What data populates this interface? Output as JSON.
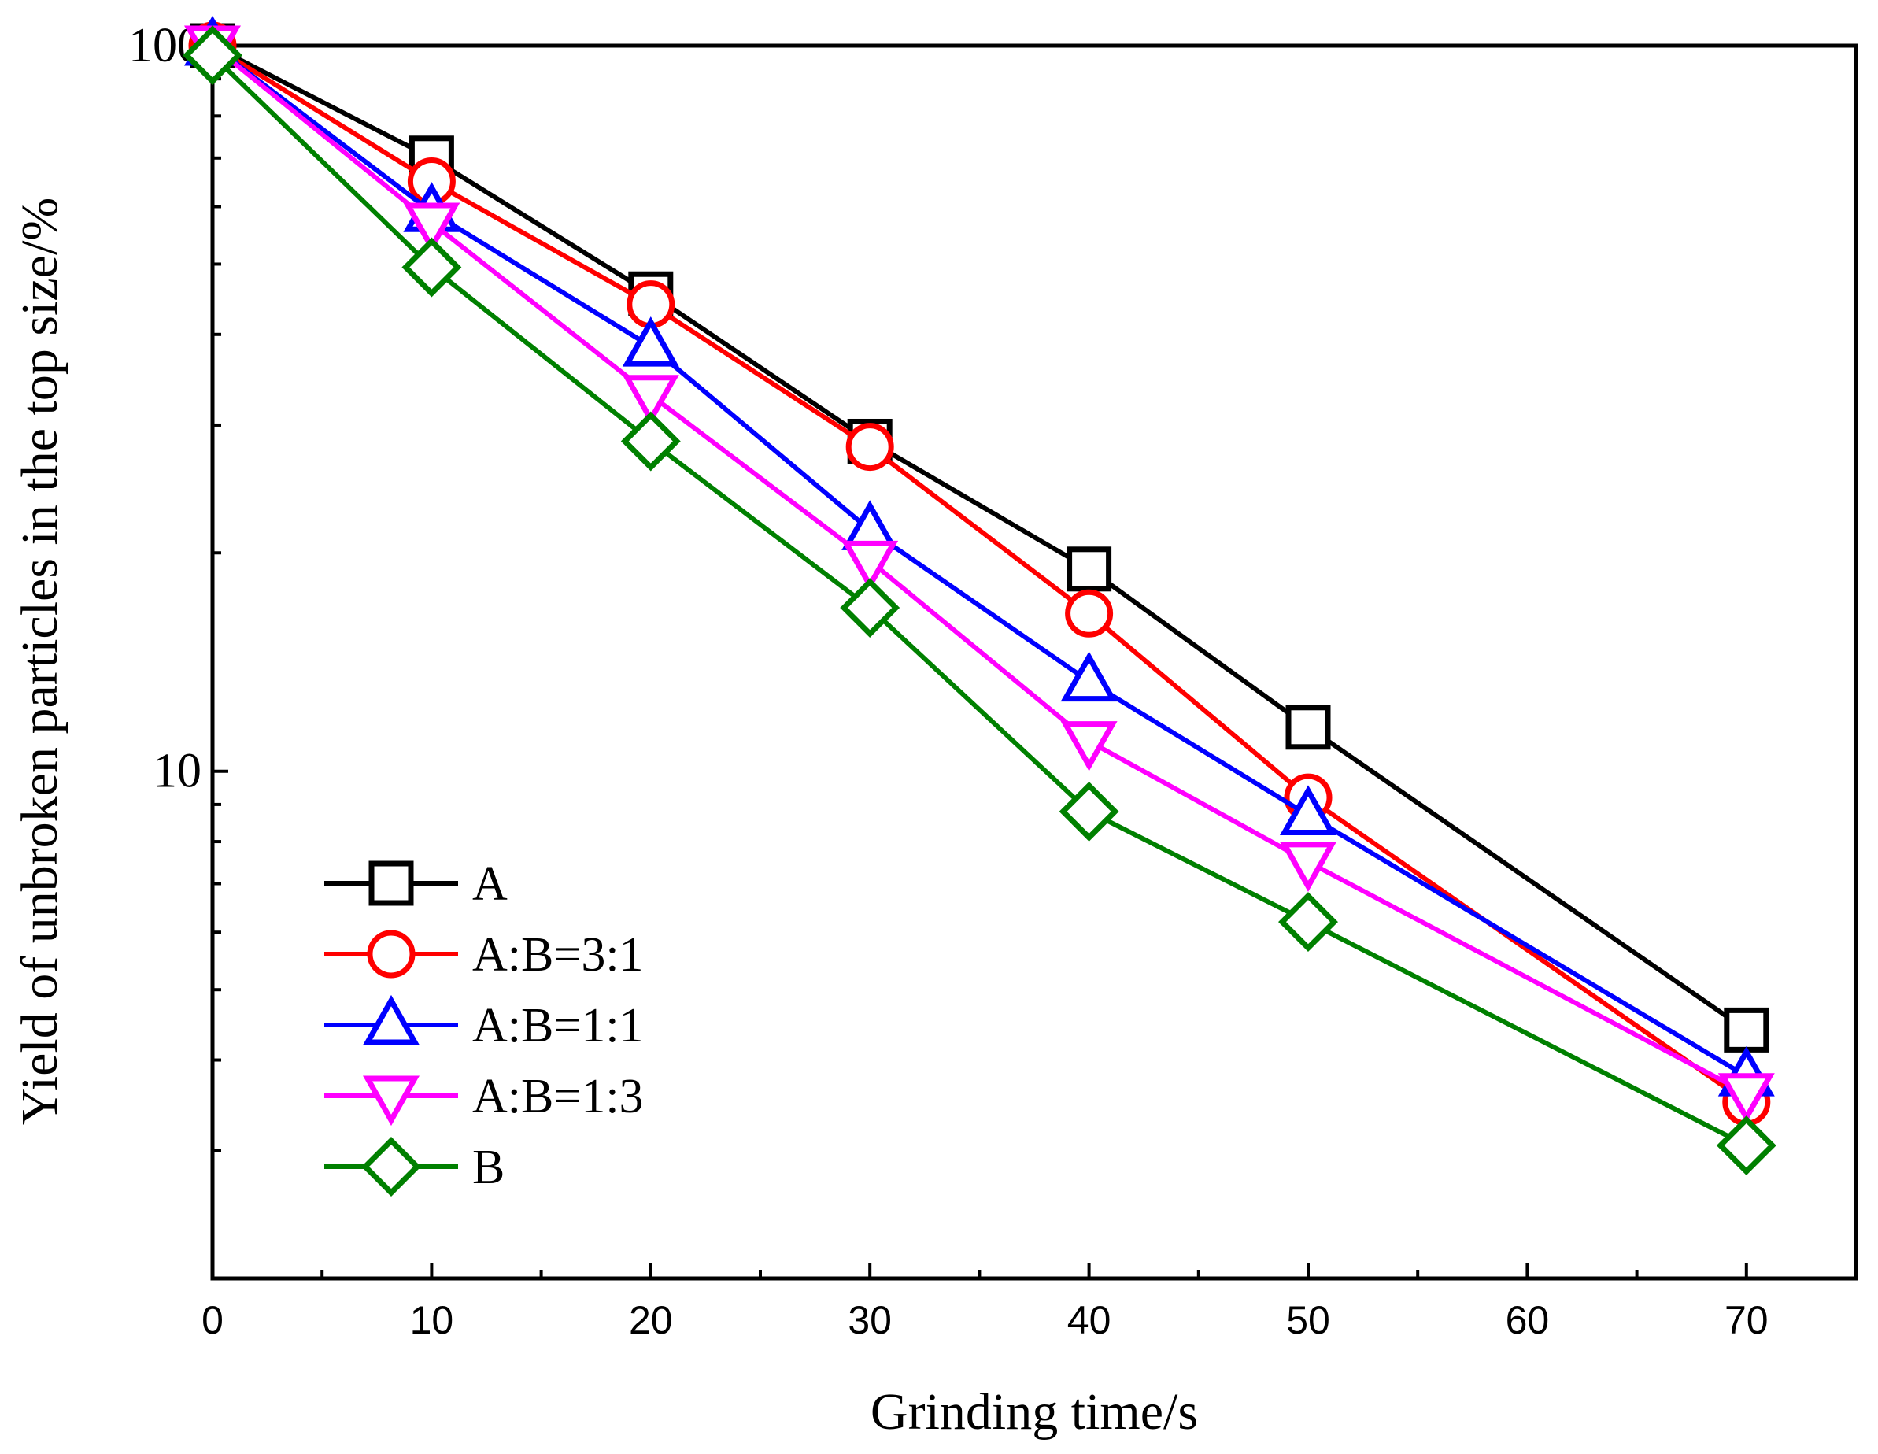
{
  "chart_data": {
    "type": "line",
    "xlabel": "Grinding time/s",
    "ylabel": "Yield of unbroken particles in the top size/%",
    "xlim": [
      0,
      75
    ],
    "ylim": [
      2,
      100
    ],
    "yscale": "log",
    "grid": false,
    "legend_position": "bottom-left",
    "x_ticks": [
      0,
      10,
      20,
      30,
      40,
      50,
      60,
      70
    ],
    "x_tick_labels": [
      "0",
      "10",
      "20",
      "30",
      "40",
      "50",
      "60",
      "70"
    ],
    "y_ticks": [
      10,
      100
    ],
    "y_tick_labels": [
      "10",
      "100"
    ],
    "series": [
      {
        "name": "A",
        "marker": "square",
        "color": "#000000",
        "x": [
          0,
          10,
          20,
          30,
          40,
          50,
          70
        ],
        "y": [
          100,
          70,
          45.5,
          28.5,
          19,
          11.5,
          4.4
        ]
      },
      {
        "name": "A:B=3:1",
        "marker": "circle",
        "color": "#ff0000",
        "x": [
          0,
          10,
          20,
          30,
          40,
          50,
          70
        ],
        "y": [
          100,
          65,
          44,
          28,
          16.5,
          9.2,
          3.5
        ]
      },
      {
        "name": "A:B=1:1",
        "marker": "triangle-up",
        "color": "#0000ff",
        "x": [
          0,
          10,
          20,
          30,
          40,
          50,
          70
        ],
        "y": [
          100,
          59,
          38.5,
          21.5,
          13.3,
          8.7,
          3.8
        ]
      },
      {
        "name": "A:B=1:3",
        "marker": "triangle-down",
        "color": "#ff00ff",
        "x": [
          0,
          10,
          20,
          30,
          40,
          50,
          70
        ],
        "y": [
          100,
          57,
          33,
          19.5,
          11,
          7.5,
          3.6
        ]
      },
      {
        "name": "B",
        "marker": "diamond",
        "color": "#008000",
        "x": [
          0,
          10,
          20,
          30,
          40,
          50,
          70
        ],
        "y": [
          97,
          49.5,
          28.5,
          16.8,
          8.8,
          6.2,
          3.05
        ]
      }
    ]
  }
}
